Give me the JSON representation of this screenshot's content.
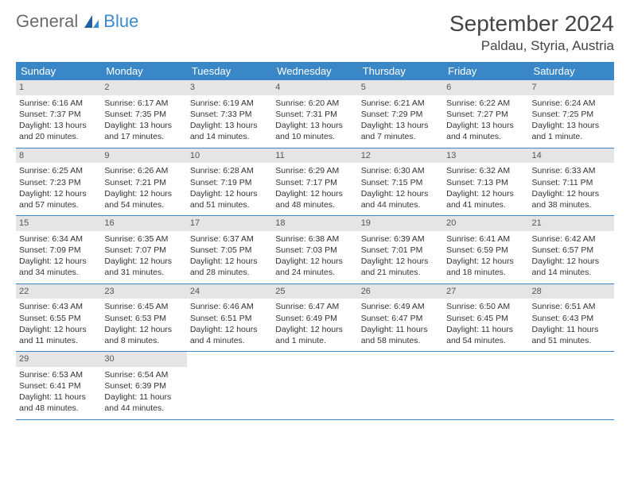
{
  "brand": {
    "part1": "General",
    "part2": "Blue"
  },
  "title": {
    "month": "September 2024",
    "location": "Paldau, Styria, Austria"
  },
  "colors": {
    "headerBg": "#3a87c7",
    "headerText": "#ffffff",
    "dayNumBg": "#e5e5e5",
    "border": "#3a87c7"
  },
  "dayNames": [
    "Sunday",
    "Monday",
    "Tuesday",
    "Wednesday",
    "Thursday",
    "Friday",
    "Saturday"
  ],
  "weeks": [
    [
      {
        "n": "1",
        "sr": "Sunrise: 6:16 AM",
        "ss": "Sunset: 7:37 PM",
        "d1": "Daylight: 13 hours",
        "d2": "and 20 minutes."
      },
      {
        "n": "2",
        "sr": "Sunrise: 6:17 AM",
        "ss": "Sunset: 7:35 PM",
        "d1": "Daylight: 13 hours",
        "d2": "and 17 minutes."
      },
      {
        "n": "3",
        "sr": "Sunrise: 6:19 AM",
        "ss": "Sunset: 7:33 PM",
        "d1": "Daylight: 13 hours",
        "d2": "and 14 minutes."
      },
      {
        "n": "4",
        "sr": "Sunrise: 6:20 AM",
        "ss": "Sunset: 7:31 PM",
        "d1": "Daylight: 13 hours",
        "d2": "and 10 minutes."
      },
      {
        "n": "5",
        "sr": "Sunrise: 6:21 AM",
        "ss": "Sunset: 7:29 PM",
        "d1": "Daylight: 13 hours",
        "d2": "and 7 minutes."
      },
      {
        "n": "6",
        "sr": "Sunrise: 6:22 AM",
        "ss": "Sunset: 7:27 PM",
        "d1": "Daylight: 13 hours",
        "d2": "and 4 minutes."
      },
      {
        "n": "7",
        "sr": "Sunrise: 6:24 AM",
        "ss": "Sunset: 7:25 PM",
        "d1": "Daylight: 13 hours",
        "d2": "and 1 minute."
      }
    ],
    [
      {
        "n": "8",
        "sr": "Sunrise: 6:25 AM",
        "ss": "Sunset: 7:23 PM",
        "d1": "Daylight: 12 hours",
        "d2": "and 57 minutes."
      },
      {
        "n": "9",
        "sr": "Sunrise: 6:26 AM",
        "ss": "Sunset: 7:21 PM",
        "d1": "Daylight: 12 hours",
        "d2": "and 54 minutes."
      },
      {
        "n": "10",
        "sr": "Sunrise: 6:28 AM",
        "ss": "Sunset: 7:19 PM",
        "d1": "Daylight: 12 hours",
        "d2": "and 51 minutes."
      },
      {
        "n": "11",
        "sr": "Sunrise: 6:29 AM",
        "ss": "Sunset: 7:17 PM",
        "d1": "Daylight: 12 hours",
        "d2": "and 48 minutes."
      },
      {
        "n": "12",
        "sr": "Sunrise: 6:30 AM",
        "ss": "Sunset: 7:15 PM",
        "d1": "Daylight: 12 hours",
        "d2": "and 44 minutes."
      },
      {
        "n": "13",
        "sr": "Sunrise: 6:32 AM",
        "ss": "Sunset: 7:13 PM",
        "d1": "Daylight: 12 hours",
        "d2": "and 41 minutes."
      },
      {
        "n": "14",
        "sr": "Sunrise: 6:33 AM",
        "ss": "Sunset: 7:11 PM",
        "d1": "Daylight: 12 hours",
        "d2": "and 38 minutes."
      }
    ],
    [
      {
        "n": "15",
        "sr": "Sunrise: 6:34 AM",
        "ss": "Sunset: 7:09 PM",
        "d1": "Daylight: 12 hours",
        "d2": "and 34 minutes."
      },
      {
        "n": "16",
        "sr": "Sunrise: 6:35 AM",
        "ss": "Sunset: 7:07 PM",
        "d1": "Daylight: 12 hours",
        "d2": "and 31 minutes."
      },
      {
        "n": "17",
        "sr": "Sunrise: 6:37 AM",
        "ss": "Sunset: 7:05 PM",
        "d1": "Daylight: 12 hours",
        "d2": "and 28 minutes."
      },
      {
        "n": "18",
        "sr": "Sunrise: 6:38 AM",
        "ss": "Sunset: 7:03 PM",
        "d1": "Daylight: 12 hours",
        "d2": "and 24 minutes."
      },
      {
        "n": "19",
        "sr": "Sunrise: 6:39 AM",
        "ss": "Sunset: 7:01 PM",
        "d1": "Daylight: 12 hours",
        "d2": "and 21 minutes."
      },
      {
        "n": "20",
        "sr": "Sunrise: 6:41 AM",
        "ss": "Sunset: 6:59 PM",
        "d1": "Daylight: 12 hours",
        "d2": "and 18 minutes."
      },
      {
        "n": "21",
        "sr": "Sunrise: 6:42 AM",
        "ss": "Sunset: 6:57 PM",
        "d1": "Daylight: 12 hours",
        "d2": "and 14 minutes."
      }
    ],
    [
      {
        "n": "22",
        "sr": "Sunrise: 6:43 AM",
        "ss": "Sunset: 6:55 PM",
        "d1": "Daylight: 12 hours",
        "d2": "and 11 minutes."
      },
      {
        "n": "23",
        "sr": "Sunrise: 6:45 AM",
        "ss": "Sunset: 6:53 PM",
        "d1": "Daylight: 12 hours",
        "d2": "and 8 minutes."
      },
      {
        "n": "24",
        "sr": "Sunrise: 6:46 AM",
        "ss": "Sunset: 6:51 PM",
        "d1": "Daylight: 12 hours",
        "d2": "and 4 minutes."
      },
      {
        "n": "25",
        "sr": "Sunrise: 6:47 AM",
        "ss": "Sunset: 6:49 PM",
        "d1": "Daylight: 12 hours",
        "d2": "and 1 minute."
      },
      {
        "n": "26",
        "sr": "Sunrise: 6:49 AM",
        "ss": "Sunset: 6:47 PM",
        "d1": "Daylight: 11 hours",
        "d2": "and 58 minutes."
      },
      {
        "n": "27",
        "sr": "Sunrise: 6:50 AM",
        "ss": "Sunset: 6:45 PM",
        "d1": "Daylight: 11 hours",
        "d2": "and 54 minutes."
      },
      {
        "n": "28",
        "sr": "Sunrise: 6:51 AM",
        "ss": "Sunset: 6:43 PM",
        "d1": "Daylight: 11 hours",
        "d2": "and 51 minutes."
      }
    ],
    [
      {
        "n": "29",
        "sr": "Sunrise: 6:53 AM",
        "ss": "Sunset: 6:41 PM",
        "d1": "Daylight: 11 hours",
        "d2": "and 48 minutes."
      },
      {
        "n": "30",
        "sr": "Sunrise: 6:54 AM",
        "ss": "Sunset: 6:39 PM",
        "d1": "Daylight: 11 hours",
        "d2": "and 44 minutes."
      },
      null,
      null,
      null,
      null,
      null
    ]
  ]
}
